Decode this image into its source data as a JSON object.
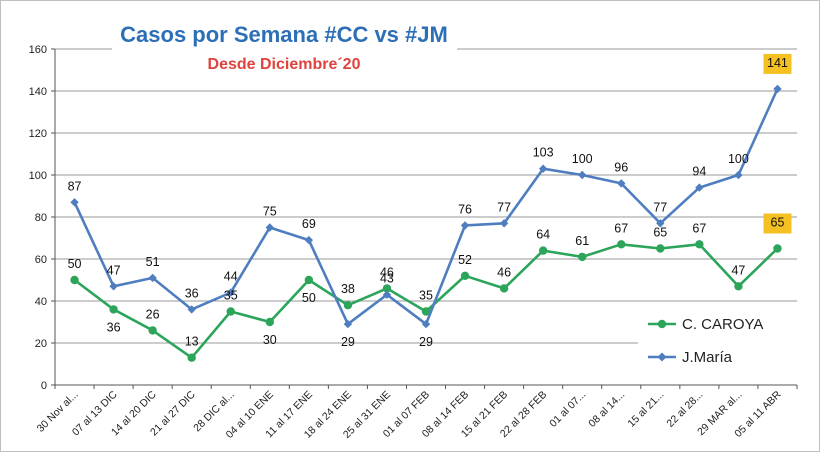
{
  "chart_data": {
    "type": "line",
    "title": "Casos por Semana #CC vs #JM",
    "subtitle": "Desde Diciembre´20",
    "xlabel": "",
    "ylabel": "",
    "ylim": [
      0,
      160
    ],
    "yticks": [
      0,
      20,
      40,
      60,
      80,
      100,
      120,
      140,
      160
    ],
    "grid": true,
    "legend_position": "bottom-right",
    "categories": [
      "30 Nov al...",
      "07 al 13 DIC",
      "14 al 20 DIC",
      "21 al 27 DIC",
      "28 DIC al...",
      "04 al 10 ENE",
      "11 al 17 ENE",
      "18 al 24 ENE",
      "25 al 31 ENE",
      "01 al 07 FEB",
      "08 al 14 FEB",
      "15 al 21 FEB",
      "22 al 28 FEB",
      "01 al 07...",
      "08 al 14...",
      "15 al 21...",
      "22 al 28...",
      "29 MAR al...",
      "05 al 11 ABR"
    ],
    "series": [
      {
        "name": "C. CAROYA",
        "color": "#2ca55a",
        "values": [
          50,
          36,
          26,
          13,
          35,
          30,
          50,
          38,
          46,
          35,
          52,
          46,
          64,
          61,
          67,
          65,
          67,
          47,
          65
        ]
      },
      {
        "name": "J.María",
        "color": "#4f7ec0",
        "values": [
          87,
          47,
          51,
          36,
          44,
          75,
          69,
          29,
          43,
          29,
          76,
          77,
          103,
          100,
          96,
          77,
          94,
          100,
          141
        ]
      }
    ],
    "highlight_color": "#f5c021",
    "title_color": "#2c6fb7",
    "subtitle_color": "#e0433d"
  }
}
